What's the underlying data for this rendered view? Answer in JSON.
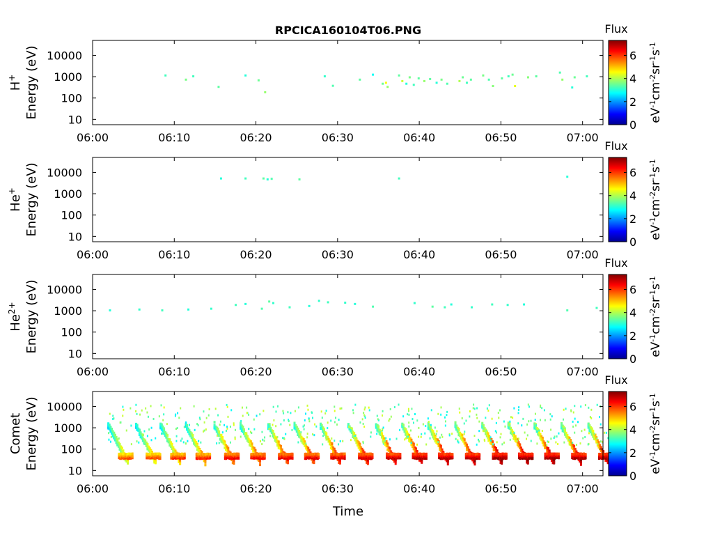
{
  "title": "RPCICA160104T06.PNG",
  "xlabel": "Time",
  "colorbar": {
    "label": "Flux",
    "unit_base": "eV",
    "unit_sup1": "-1",
    "unit_mid": "cm",
    "unit_sup2": "-2",
    "unit_sr": "sr",
    "unit_sup3": "-1",
    "unit_s": "s",
    "unit_sup4": "-1",
    "ticks": [
      "0",
      "2",
      "4",
      "6"
    ],
    "range": [
      0,
      7.3
    ],
    "colormap": "jet"
  },
  "chart_data": [
    {
      "type": "heatmap",
      "panel": "H+",
      "ylabel_species": "H",
      "ylabel_sup": "+",
      "ylabel": "Energy (eV)",
      "xticks": [
        "06:00",
        "06:10",
        "06:20",
        "06:30",
        "06:40",
        "06:50",
        "07:00"
      ],
      "yticks": [
        "10",
        "100",
        "1000",
        "10000"
      ],
      "xlim": [
        0,
        62.5
      ],
      "ylim_log10": [
        0.75,
        4.7
      ],
      "cells": [
        [
          8.8,
          1100,
          3.2
        ],
        [
          11.3,
          700,
          3.6
        ],
        [
          12.2,
          1000,
          3.2
        ],
        [
          15.3,
          320,
          3.4
        ],
        [
          18.6,
          1100,
          3.0
        ],
        [
          20.2,
          650,
          3.5
        ],
        [
          21.0,
          180,
          3.8
        ],
        [
          28.3,
          1000,
          3.1
        ],
        [
          29.3,
          360,
          3.3
        ],
        [
          32.6,
          700,
          3.4
        ],
        [
          34.2,
          1200,
          2.8
        ],
        [
          35.4,
          450,
          3.5
        ],
        [
          35.8,
          500,
          4.5
        ],
        [
          36.0,
          320,
          3.8
        ],
        [
          37.4,
          1100,
          3.4
        ],
        [
          37.8,
          600,
          4.2
        ],
        [
          38.3,
          450,
          3.0
        ],
        [
          38.7,
          900,
          3.6
        ],
        [
          39.2,
          400,
          3.2
        ],
        [
          39.8,
          800,
          3.4
        ],
        [
          40.5,
          600,
          3.8
        ],
        [
          41.2,
          750,
          3.4
        ],
        [
          42.0,
          500,
          3.0
        ],
        [
          42.6,
          700,
          3.6
        ],
        [
          43.3,
          450,
          3.3
        ],
        [
          44.8,
          600,
          4.0
        ],
        [
          45.2,
          900,
          3.5
        ],
        [
          45.7,
          500,
          3.2
        ],
        [
          46.2,
          700,
          3.4
        ],
        [
          47.7,
          1100,
          3.6
        ],
        [
          48.4,
          700,
          3.3
        ],
        [
          48.9,
          350,
          3.7
        ],
        [
          50.0,
          800,
          3.4
        ],
        [
          50.8,
          1000,
          3.2
        ],
        [
          51.3,
          1200,
          3.5
        ],
        [
          51.6,
          350,
          4.4
        ],
        [
          53.2,
          900,
          3.7
        ],
        [
          54.2,
          1000,
          3.4
        ],
        [
          57.1,
          1500,
          3.3
        ],
        [
          57.4,
          700,
          3.8
        ],
        [
          58.6,
          300,
          3.0
        ],
        [
          58.9,
          900,
          3.5
        ],
        [
          60.4,
          1000,
          3.2
        ]
      ]
    },
    {
      "type": "heatmap",
      "panel": "He+",
      "ylabel_species": "He",
      "ylabel_sup": "+",
      "ylabel": "Energy (eV)",
      "xticks": [
        "06:00",
        "06:10",
        "06:20",
        "06:30",
        "06:40",
        "06:50",
        "07:00"
      ],
      "yticks": [
        "10",
        "100",
        "1000",
        "10000"
      ],
      "xlim": [
        0,
        62.5
      ],
      "ylim_log10": [
        0.75,
        4.7
      ],
      "cells": [
        [
          15.6,
          5000,
          3.0
        ],
        [
          18.6,
          5000,
          3.2
        ],
        [
          20.8,
          5000,
          3.4
        ],
        [
          21.3,
          4500,
          3.0
        ],
        [
          21.8,
          4800,
          3.3
        ],
        [
          25.2,
          4500,
          3.4
        ],
        [
          37.4,
          5000,
          3.2
        ],
        [
          58.0,
          6000,
          3.0
        ]
      ]
    },
    {
      "type": "heatmap",
      "panel": "He2+",
      "ylabel_species": "He",
      "ylabel_sup": "2+",
      "ylabel": "Energy (eV)",
      "xticks": [
        "06:00",
        "06:10",
        "06:20",
        "06:30",
        "06:40",
        "06:50",
        "07:00"
      ],
      "yticks": [
        "10",
        "100",
        "1000",
        "10000"
      ],
      "xlim": [
        0,
        62.5
      ],
      "ylim_log10": [
        0.75,
        4.7
      ],
      "cells": [
        [
          2.0,
          1000,
          3.0
        ],
        [
          5.6,
          1100,
          3.1
        ],
        [
          8.4,
          1000,
          3.2
        ],
        [
          11.6,
          1100,
          3.0
        ],
        [
          14.4,
          1200,
          3.1
        ],
        [
          17.4,
          1800,
          3.2
        ],
        [
          18.6,
          2000,
          3.0
        ],
        [
          20.6,
          1200,
          3.3
        ],
        [
          21.5,
          2600,
          3.4
        ],
        [
          22.0,
          2200,
          3.1
        ],
        [
          24.0,
          1400,
          3.2
        ],
        [
          26.4,
          1600,
          3.0
        ],
        [
          27.6,
          2800,
          3.1
        ],
        [
          28.7,
          2400,
          3.2
        ],
        [
          30.8,
          2300,
          3.1
        ],
        [
          32.0,
          2000,
          3.0
        ],
        [
          34.2,
          1500,
          3.3
        ],
        [
          39.3,
          2200,
          3.1
        ],
        [
          41.5,
          1500,
          3.4
        ],
        [
          43.0,
          1400,
          3.2
        ],
        [
          43.8,
          1900,
          3.0
        ],
        [
          46.3,
          1400,
          3.1
        ],
        [
          48.8,
          1900,
          3.2
        ],
        [
          50.7,
          1800,
          3.1
        ],
        [
          52.7,
          1900,
          3.0
        ],
        [
          58.0,
          1000,
          3.3
        ],
        [
          61.6,
          1300,
          3.2
        ]
      ]
    },
    {
      "type": "heatmap",
      "panel": "Comet",
      "ylabel_species": "Comet",
      "ylabel_sup": "",
      "ylabel": "Energy (eV)",
      "xticks": [
        "06:00",
        "06:10",
        "06:20",
        "06:30",
        "06:40",
        "06:50",
        "07:00"
      ],
      "yticks": [
        "10",
        "100",
        "1000",
        "10000"
      ],
      "xlim": [
        0,
        62.5
      ],
      "ylim_log10": [
        0.75,
        4.7
      ],
      "bursts": [
        {
          "t": 1.8,
          "f": 0.45
        },
        {
          "t": 5.2,
          "f": 0.5
        },
        {
          "t": 8.2,
          "f": 0.55
        },
        {
          "t": 11.3,
          "f": 0.6
        },
        {
          "t": 14.8,
          "f": 0.7
        },
        {
          "t": 18.0,
          "f": 0.7
        },
        {
          "t": 21.4,
          "f": 0.75
        },
        {
          "t": 24.6,
          "f": 0.75
        },
        {
          "t": 27.8,
          "f": 0.8
        },
        {
          "t": 31.2,
          "f": 0.8
        },
        {
          "t": 34.6,
          "f": 0.85
        },
        {
          "t": 37.8,
          "f": 0.9
        },
        {
          "t": 41.0,
          "f": 0.9
        },
        {
          "t": 44.3,
          "f": 0.9
        },
        {
          "t": 47.6,
          "f": 0.95
        },
        {
          "t": 50.8,
          "f": 0.95
        },
        {
          "t": 54.0,
          "f": 0.95
        },
        {
          "t": 57.3,
          "f": 0.9
        },
        {
          "t": 60.6,
          "f": 0.9
        }
      ]
    }
  ]
}
